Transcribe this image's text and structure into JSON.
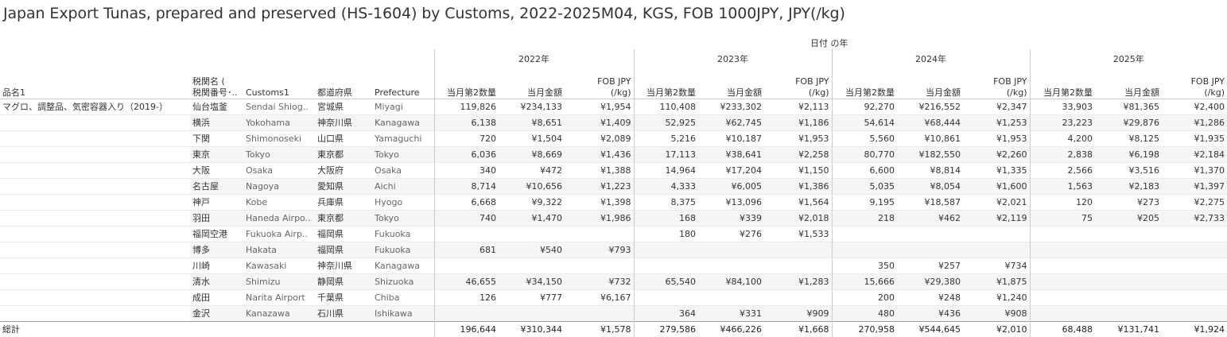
{
  "title": "Japan Export Tunas, prepared and preserved (HS-1604) by Customs, 2022-2025M04, KGS, FOB 1000JPY, JPY(/kg)",
  "column_group_title": "日付 の年",
  "row_headers": {
    "product": "品名1",
    "customs_jp": "税関名 ( 税関番号･..",
    "customs_jp_line1": "税関名 (",
    "customs_jp_line2": "税関番号･..",
    "customs_en": "Customs1",
    "prefecture_jp": "都道府県",
    "prefecture_en": "Prefecture"
  },
  "years": [
    "2022年",
    "2023年",
    "2024年",
    "2025年"
  ],
  "measures": {
    "qty": "当月第2数量",
    "amount": "当月金額",
    "fob_line1": "FOB JPY",
    "fob_line2": "(/kg)"
  },
  "product_name": "マグロ、調整品、気密容器入り（2019-）",
  "total_label": "総計",
  "chart_data": {
    "type": "table",
    "title": "Japan Export Tunas, prepared and preserved (HS-1604) by Customs, 2022-2025M04, KGS, FOB 1000JPY, JPY(/kg)",
    "columns": [
      "当月第2数量",
      "当月金額",
      "FOB JPY (/kg)"
    ],
    "years": [
      "2022年",
      "2023年",
      "2024年",
      "2025年"
    ],
    "rows": [
      {
        "customs_jp": "仙台塩釜",
        "customs_en": "Sendai Shiog..",
        "pref_jp": "宮城県",
        "pref_en": "Miyagi",
        "values": [
          [
            "119,826",
            "¥234,133",
            "¥1,954"
          ],
          [
            "110,408",
            "¥233,302",
            "¥2,113"
          ],
          [
            "92,270",
            "¥216,552",
            "¥2,347"
          ],
          [
            "33,903",
            "¥81,365",
            "¥2,400"
          ]
        ]
      },
      {
        "customs_jp": "横浜",
        "customs_en": "Yokohama",
        "pref_jp": "神奈川県",
        "pref_en": "Kanagawa",
        "values": [
          [
            "6,138",
            "¥8,651",
            "¥1,409"
          ],
          [
            "52,925",
            "¥62,745",
            "¥1,186"
          ],
          [
            "54,614",
            "¥68,444",
            "¥1,253"
          ],
          [
            "23,223",
            "¥29,876",
            "¥1,286"
          ]
        ]
      },
      {
        "customs_jp": "下関",
        "customs_en": "Shimonoseki",
        "pref_jp": "山口県",
        "pref_en": "Yamaguchi",
        "values": [
          [
            "720",
            "¥1,504",
            "¥2,089"
          ],
          [
            "5,216",
            "¥10,187",
            "¥1,953"
          ],
          [
            "5,560",
            "¥10,861",
            "¥1,953"
          ],
          [
            "4,200",
            "¥8,125",
            "¥1,935"
          ]
        ]
      },
      {
        "customs_jp": "東京",
        "customs_en": "Tokyo",
        "pref_jp": "東京都",
        "pref_en": "Tokyo",
        "values": [
          [
            "6,036",
            "¥8,669",
            "¥1,436"
          ],
          [
            "17,113",
            "¥38,641",
            "¥2,258"
          ],
          [
            "80,770",
            "¥182,550",
            "¥2,260"
          ],
          [
            "2,838",
            "¥6,198",
            "¥2,184"
          ]
        ]
      },
      {
        "customs_jp": "大阪",
        "customs_en": "Osaka",
        "pref_jp": "大阪府",
        "pref_en": "Osaka",
        "values": [
          [
            "340",
            "¥472",
            "¥1,388"
          ],
          [
            "14,964",
            "¥17,204",
            "¥1,150"
          ],
          [
            "6,600",
            "¥8,814",
            "¥1,335"
          ],
          [
            "2,566",
            "¥3,516",
            "¥1,370"
          ]
        ]
      },
      {
        "customs_jp": "名古屋",
        "customs_en": "Nagoya",
        "pref_jp": "愛知県",
        "pref_en": "Aichi",
        "values": [
          [
            "8,714",
            "¥10,656",
            "¥1,223"
          ],
          [
            "4,333",
            "¥6,005",
            "¥1,386"
          ],
          [
            "5,035",
            "¥8,054",
            "¥1,600"
          ],
          [
            "1,563",
            "¥2,183",
            "¥1,397"
          ]
        ]
      },
      {
        "customs_jp": "神戸",
        "customs_en": "Kobe",
        "pref_jp": "兵庫県",
        "pref_en": "Hyogo",
        "values": [
          [
            "6,668",
            "¥9,322",
            "¥1,398"
          ],
          [
            "8,375",
            "¥13,096",
            "¥1,564"
          ],
          [
            "9,195",
            "¥18,587",
            "¥2,021"
          ],
          [
            "120",
            "¥273",
            "¥2,275"
          ]
        ]
      },
      {
        "customs_jp": "羽田",
        "customs_en": "Haneda Airpo..",
        "pref_jp": "東京都",
        "pref_en": "Tokyo",
        "values": [
          [
            "740",
            "¥1,470",
            "¥1,986"
          ],
          [
            "168",
            "¥339",
            "¥2,018"
          ],
          [
            "218",
            "¥462",
            "¥2,119"
          ],
          [
            "75",
            "¥205",
            "¥2,733"
          ]
        ]
      },
      {
        "customs_jp": "福岡空港",
        "customs_en": "Fukuoka Airp..",
        "pref_jp": "福岡県",
        "pref_en": "Fukuoka",
        "values": [
          [
            "",
            "",
            ""
          ],
          [
            "180",
            "¥276",
            "¥1,533"
          ],
          [
            "",
            "",
            ""
          ],
          [
            "",
            "",
            ""
          ]
        ]
      },
      {
        "customs_jp": "博多",
        "customs_en": "Hakata",
        "pref_jp": "福岡県",
        "pref_en": "Fukuoka",
        "values": [
          [
            "681",
            "¥540",
            "¥793"
          ],
          [
            "",
            "",
            ""
          ],
          [
            "",
            "",
            ""
          ],
          [
            "",
            "",
            ""
          ]
        ]
      },
      {
        "customs_jp": "川崎",
        "customs_en": "Kawasaki",
        "pref_jp": "神奈川県",
        "pref_en": "Kanagawa",
        "values": [
          [
            "",
            "",
            ""
          ],
          [
            "",
            "",
            ""
          ],
          [
            "350",
            "¥257",
            "¥734"
          ],
          [
            "",
            "",
            ""
          ]
        ]
      },
      {
        "customs_jp": "清水",
        "customs_en": "Shimizu",
        "pref_jp": "静岡県",
        "pref_en": "Shizuoka",
        "values": [
          [
            "46,655",
            "¥34,150",
            "¥732"
          ],
          [
            "65,540",
            "¥84,100",
            "¥1,283"
          ],
          [
            "15,666",
            "¥29,380",
            "¥1,875"
          ],
          [
            "",
            "",
            ""
          ]
        ]
      },
      {
        "customs_jp": "成田",
        "customs_en": "Narita Airport",
        "pref_jp": "千葉県",
        "pref_en": "Chiba",
        "values": [
          [
            "126",
            "¥777",
            "¥6,167"
          ],
          [
            "",
            "",
            ""
          ],
          [
            "200",
            "¥248",
            "¥1,240"
          ],
          [
            "",
            "",
            ""
          ]
        ]
      },
      {
        "customs_jp": "金沢",
        "customs_en": "Kanazawa",
        "pref_jp": "石川県",
        "pref_en": "Ishikawa",
        "values": [
          [
            "",
            "",
            ""
          ],
          [
            "364",
            "¥331",
            "¥909"
          ],
          [
            "480",
            "¥436",
            "¥908"
          ],
          [
            "",
            "",
            ""
          ]
        ]
      }
    ],
    "totals": [
      [
        "196,644",
        "¥310,344",
        "¥1,578"
      ],
      [
        "279,586",
        "¥466,226",
        "¥1,668"
      ],
      [
        "270,958",
        "¥544,645",
        "¥2,010"
      ],
      [
        "68,488",
        "¥131,741",
        "¥1,924"
      ]
    ]
  }
}
